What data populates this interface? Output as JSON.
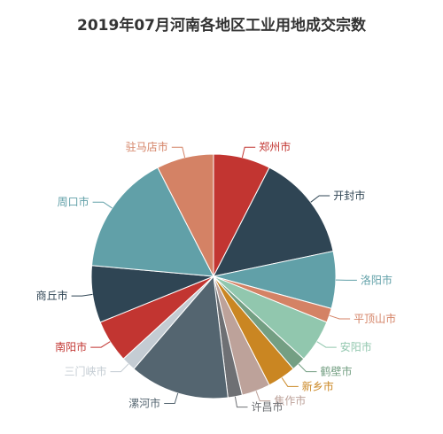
{
  "chart_data": {
    "type": "pie",
    "title": "2019年07月河南各地区工业用地成交宗数",
    "slices": [
      {
        "name": "郑州市",
        "value": 8,
        "color": "#c23531"
      },
      {
        "name": "开封市",
        "value": 15,
        "color": "#2f4554"
      },
      {
        "name": "洛阳市",
        "value": 8,
        "color": "#61a0a8"
      },
      {
        "name": "平顶山市",
        "value": 2,
        "color": "#d48265"
      },
      {
        "name": "安阳市",
        "value": 6,
        "color": "#91c7ae"
      },
      {
        "name": "鹤壁市",
        "value": 2,
        "color": "#749f83"
      },
      {
        "name": "新乡市",
        "value": 4,
        "color": "#ca8622"
      },
      {
        "name": "焦作市",
        "value": 4,
        "color": "#bda29a"
      },
      {
        "name": "许昌市",
        "value": 2,
        "color": "#6e7074"
      },
      {
        "name": "漯河市",
        "value": 14,
        "color": "#546570"
      },
      {
        "name": "三门峡市",
        "value": 2,
        "color": "#c4ccd3"
      },
      {
        "name": "南阳市",
        "value": 6,
        "color": "#c23531"
      },
      {
        "name": "商丘市",
        "value": 8,
        "color": "#2f4554"
      },
      {
        "name": "周口市",
        "value": 17,
        "color": "#61a0a8"
      },
      {
        "name": "驻马店市",
        "value": 8,
        "color": "#d48265"
      }
    ]
  }
}
